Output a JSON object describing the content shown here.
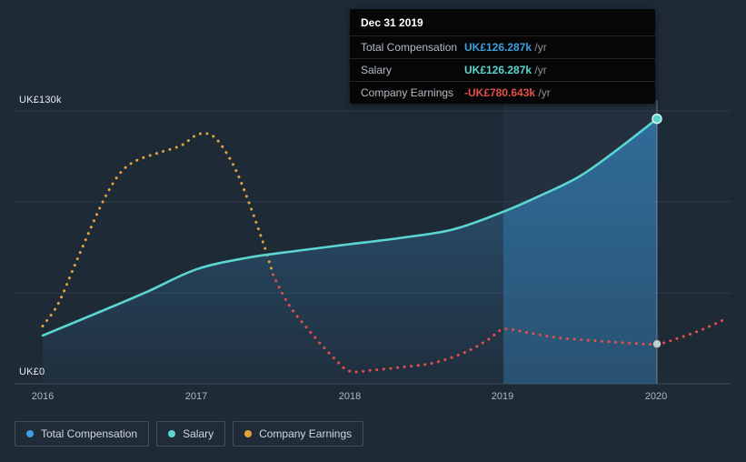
{
  "colors": {
    "background": "#1f2a37",
    "tooltip_bg": "#060606",
    "grid": "#2e3a49",
    "axis_line": "#3e4a59",
    "text_primary": "#e6ebef",
    "text_secondary": "#aeb8c2",
    "total_comp": "#3aa0e0",
    "salary": "#5bd6d0",
    "earnings_pos": "#e5a33c",
    "earnings_neg": "#e2504a",
    "marker_neutral": "#c4cad1",
    "area_top": "rgba(59,152,214,0.42)",
    "area_bottom": "rgba(59,152,214,0.04)",
    "band_fill": "rgba(53,148,216,0.30)",
    "band_bg": "rgba(140,180,220,0.05)",
    "vline": "rgba(200,216,232,0.45)"
  },
  "tooltip": {
    "title": "Dec 31 2019",
    "rows": [
      {
        "label": "Total Compensation",
        "value": "UK£126.287k",
        "suffix": " /yr",
        "color": "#3aa0e0"
      },
      {
        "label": "Salary",
        "value": "UK£126.287k",
        "suffix": " /yr",
        "color": "#5bd6d0"
      },
      {
        "label": "Company Earnings",
        "value": "-UK£780.643k",
        "suffix": " /yr",
        "color": "#e2504a"
      }
    ]
  },
  "axes": {
    "y_top": "UK£130k",
    "y_bottom": "UK£0",
    "x_ticks": [
      "2016",
      "2017",
      "2018",
      "2019",
      "2020"
    ]
  },
  "legend": [
    {
      "label": "Total Compensation",
      "color": "#3aa0e0"
    },
    {
      "label": "Salary",
      "color": "#5bd6d0"
    },
    {
      "label": "Company Earnings",
      "color": "#e5a33c"
    }
  ],
  "chart_data": {
    "type": "line",
    "title": "Executive compensation vs company earnings over time",
    "x_ticks": [
      2016,
      2017,
      2018,
      2019,
      2020
    ],
    "x_range": [
      2016,
      2020.45
    ],
    "ylim_k": [
      0,
      130
    ],
    "y_unit": "UK£ thousands per year",
    "grid_values_k": [
      130,
      86.7,
      43.3,
      0
    ],
    "highlight_range": [
      2019,
      2020
    ],
    "selected_x": 2020,
    "selected_date": "Dec 31 2019",
    "series": [
      {
        "name": "Salary",
        "color_key": "salary",
        "style": "line-area",
        "points": [
          [
            2016,
            23
          ],
          [
            2016.33,
            33
          ],
          [
            2016.67,
            43.5
          ],
          [
            2017,
            54.5
          ],
          [
            2017.33,
            60
          ],
          [
            2017.67,
            63.5
          ],
          [
            2018,
            66.5
          ],
          [
            2018.33,
            69.5
          ],
          [
            2018.67,
            73.5
          ],
          [
            2019,
            82
          ],
          [
            2019.25,
            90
          ],
          [
            2019.5,
            99
          ],
          [
            2019.75,
            112
          ],
          [
            2020,
            126.287
          ]
        ],
        "end_value_label": "UK£126.287k /yr"
      },
      {
        "name": "Total Compensation",
        "color_key": "total_comp",
        "style": "area",
        "note": "coincides with Salary line; shown as shaded area",
        "end_value_k": 126.287,
        "end_value_label": "UK£126.287k /yr"
      },
      {
        "name": "Company Earnings",
        "style": "dotted",
        "display_scale_note": "plotted on display scale; actual value at selection is -UK£780.643k /yr",
        "segments": [
          {
            "color_key": "earnings_pos",
            "points": [
              [
                2016,
                27.5
              ],
              [
                2016.1,
                38
              ],
              [
                2016.2,
                55
              ],
              [
                2016.3,
                72
              ],
              [
                2016.4,
                88
              ],
              [
                2016.5,
                100
              ],
              [
                2016.6,
                106
              ],
              [
                2016.75,
                110
              ],
              [
                2016.9,
                113.5
              ],
              [
                2017,
                118.5
              ],
              [
                2017.08,
                119
              ],
              [
                2017.15,
                115
              ],
              [
                2017.25,
                103
              ],
              [
                2017.35,
                85
              ],
              [
                2017.45,
                64
              ],
              [
                2017.5,
                52
              ]
            ]
          },
          {
            "color_key": "earnings_neg",
            "points": [
              [
                2017.5,
                52
              ],
              [
                2017.6,
                38
              ],
              [
                2017.75,
                24
              ],
              [
                2017.9,
                12
              ],
              [
                2018,
                6
              ],
              [
                2018.15,
                6.5
              ],
              [
                2018.35,
                8
              ],
              [
                2018.55,
                10
              ],
              [
                2018.75,
                15
              ],
              [
                2018.9,
                21
              ],
              [
                2019,
                26
              ],
              [
                2019.15,
                24.5
              ],
              [
                2019.35,
                22
              ],
              [
                2019.6,
                20.5
              ],
              [
                2019.8,
                19.5
              ],
              [
                2020,
                19
              ],
              [
                2020.15,
                22
              ],
              [
                2020.3,
                26
              ],
              [
                2020.45,
                31
              ]
            ]
          }
        ],
        "end_marker_k": 19,
        "end_value_label": "-UK£780.643k /yr"
      }
    ]
  }
}
